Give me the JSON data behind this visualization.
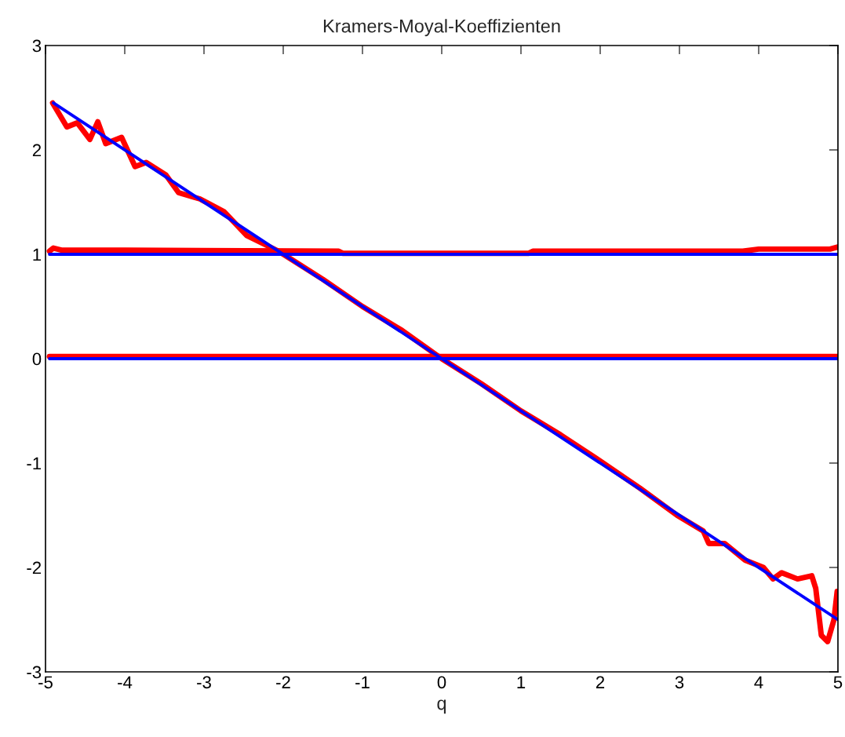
{
  "chart_data": {
    "type": "line",
    "title": "Kramers-Moyal-Koeffizienten",
    "xlabel": "q",
    "xlim": [
      -5,
      5
    ],
    "ylim": [
      -3,
      3
    ],
    "xticks": [
      -5,
      -4,
      -3,
      -2,
      -1,
      0,
      1,
      2,
      3,
      4,
      5
    ],
    "yticks": [
      -3,
      -2,
      -1,
      0,
      1,
      2,
      3
    ],
    "grid": false,
    "series": [
      {
        "color": "#ff0000",
        "x": [
          -4.91,
          -4.73,
          -4.6,
          -4.44,
          -4.34,
          -4.24,
          -4.04,
          -3.87,
          -3.73,
          -3.48,
          -3.32,
          -3.05,
          -2.75,
          -2.46,
          -2.06,
          -1.5,
          -1.0,
          -0.5,
          0.0,
          0.5,
          1.0,
          1.5,
          2.0,
          2.5,
          2.97,
          3.3,
          3.37,
          3.57,
          3.83,
          4.06,
          4.18,
          4.29,
          4.49,
          4.67,
          4.72,
          4.79,
          4.87,
          4.95,
          4.99
        ],
        "values": [
          2.45,
          2.22,
          2.26,
          2.1,
          2.27,
          2.06,
          2.12,
          1.84,
          1.88,
          1.76,
          1.59,
          1.53,
          1.41,
          1.18,
          1.03,
          0.76,
          0.5,
          0.27,
          0.0,
          -0.24,
          -0.5,
          -0.73,
          -0.98,
          -1.24,
          -1.5,
          -1.65,
          -1.77,
          -1.77,
          -1.93,
          -2.0,
          -2.11,
          -2.05,
          -2.11,
          -2.08,
          -2.2,
          -2.65,
          -2.71,
          -2.5,
          -2.23
        ]
      },
      {
        "color": "#ff0000",
        "x": [
          -4.95,
          -4.9,
          -4.8,
          -4.0,
          -1.3,
          -1.25,
          1.1,
          1.15,
          3.8,
          4.0,
          4.9,
          5.0
        ],
        "values": [
          1.03,
          1.06,
          1.04,
          1.04,
          1.03,
          1.01,
          1.01,
          1.03,
          1.03,
          1.05,
          1.05,
          1.07
        ]
      },
      {
        "color": "#ff0000",
        "x": [
          -4.95,
          5.0
        ],
        "values": [
          0.02,
          0.02
        ]
      },
      {
        "color": "#0000ff",
        "x": [
          -4.9,
          5.0
        ],
        "values": [
          2.45,
          -2.5
        ]
      },
      {
        "color": "#0000ff",
        "x": [
          -4.95,
          5.0
        ],
        "values": [
          1.0,
          1.0
        ]
      },
      {
        "color": "#0000ff",
        "x": [
          -4.95,
          5.0
        ],
        "values": [
          0.0,
          0.0
        ]
      }
    ]
  }
}
